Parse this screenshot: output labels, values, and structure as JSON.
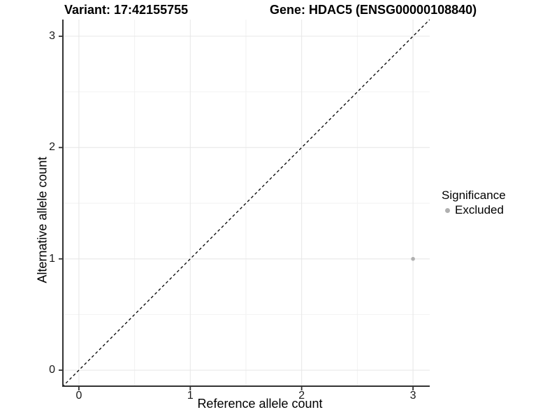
{
  "chart_data": {
    "type": "scatter",
    "title_left": "Variant: 17:42155755",
    "title_right": "Gene: HDAC5 (ENSG00000108840)",
    "xlabel": "Reference allele count",
    "ylabel": "Alternative allele count",
    "xlim": [
      -0.15,
      3.15
    ],
    "ylim": [
      -0.15,
      3.15
    ],
    "xticks": [
      0,
      1,
      2,
      3
    ],
    "yticks": [
      0,
      1,
      2,
      3
    ],
    "x_minor_ticks": [
      0.5,
      1.5,
      2.5
    ],
    "y_minor_ticks": [
      0.5,
      1.5,
      2.5
    ],
    "grid": true,
    "reference_line": {
      "type": "diagonal",
      "equation": "y = x",
      "style": "dashed"
    },
    "series": [
      {
        "name": "Excluded",
        "points": [
          {
            "x": 3,
            "y": 1
          }
        ]
      }
    ],
    "legend": {
      "title": "Significance",
      "position": "right",
      "items": [
        {
          "label": "Excluded",
          "color": "#b0b0b0"
        }
      ]
    }
  },
  "palette": {
    "point": "#b0b0b0",
    "grid_major": "#e6e6e6",
    "grid_minor": "#f2f2f2",
    "axis_line": "#333333",
    "diagonal": "#000000",
    "background": "#ffffff"
  }
}
